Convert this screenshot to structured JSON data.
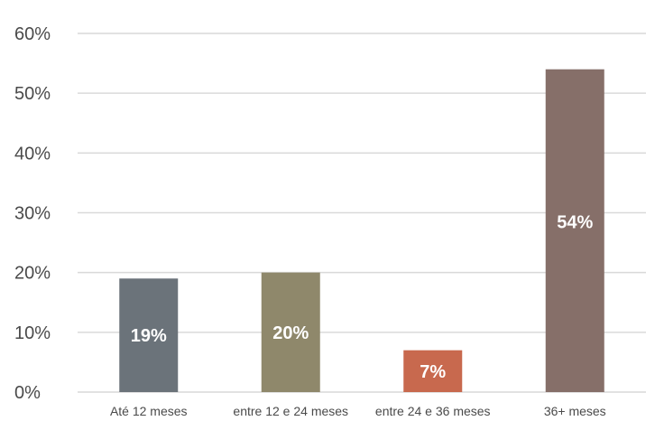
{
  "chart_data": {
    "type": "bar",
    "categories": [
      "Até 12 meses",
      "entre 12 e 24 meses",
      "entre 24 e 36 meses",
      "36+ meses"
    ],
    "values": [
      19,
      20,
      7,
      54
    ],
    "data_labels": [
      "19%",
      "20%",
      "7%",
      "54%"
    ],
    "ylim": [
      0,
      60
    ],
    "yticks": [
      0,
      10,
      20,
      30,
      40,
      50,
      60
    ],
    "ytick_labels": [
      "0%",
      "10%",
      "20%",
      "30%",
      "40%",
      "50%",
      "60%"
    ],
    "grid": true,
    "colors": [
      "#6b737a",
      "#8f886b",
      "#c8694e",
      "#866f69"
    ]
  }
}
